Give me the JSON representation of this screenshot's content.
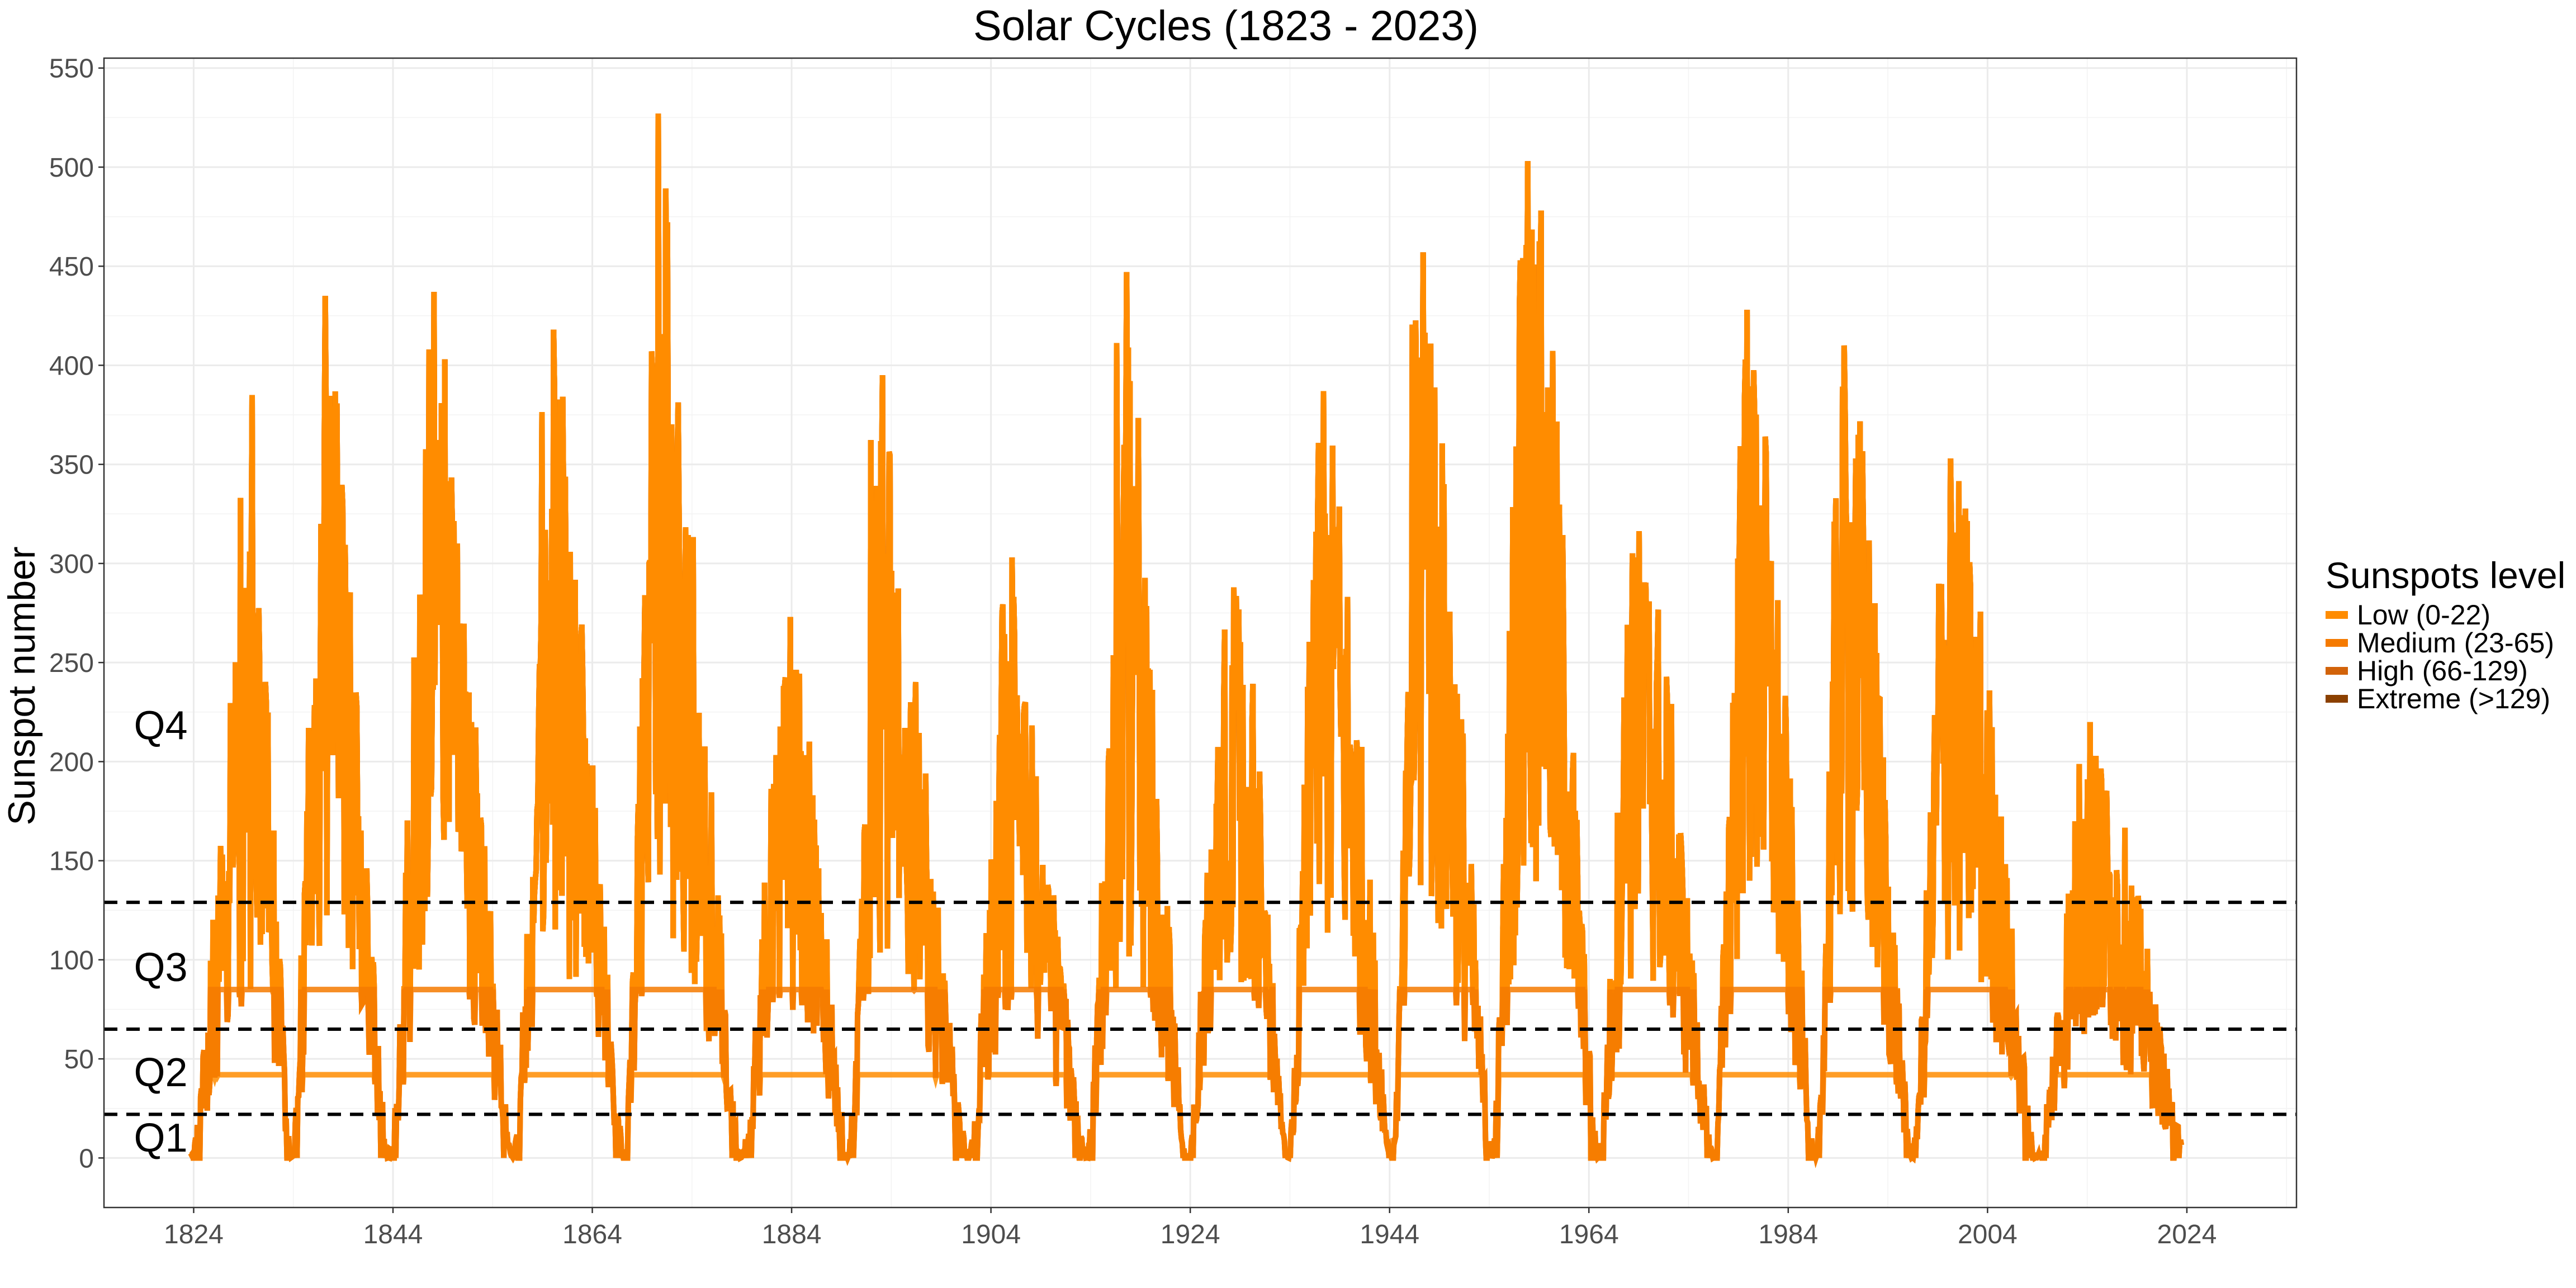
{
  "chart_data": {
    "type": "line",
    "title": "Solar Cycles (1823 - 2023)",
    "xlabel": "",
    "ylabel": "Sunspot number",
    "xlim": [
      1815,
      2035
    ],
    "ylim": [
      -25,
      555
    ],
    "x_ticks": [
      1824,
      1844,
      1864,
      1884,
      1904,
      1924,
      1944,
      1964,
      1984,
      2004,
      2024
    ],
    "y_ticks": [
      0,
      50,
      100,
      150,
      200,
      250,
      300,
      350,
      400,
      450,
      500,
      550
    ],
    "grid": true,
    "legend": {
      "title": "Sunspots level",
      "placement": "right",
      "entries": [
        {
          "label": "Low (0-22)",
          "color": "#FF8C00"
        },
        {
          "label": "Medium (23-65)",
          "color": "#F57A00"
        },
        {
          "label": "High (66-129)",
          "color": "#D2630A"
        },
        {
          "label": "Extreme (>129)",
          "color": "#8B4000"
        }
      ]
    },
    "thresholds": [
      22,
      65,
      129
    ],
    "quartile_labels": [
      {
        "label": "Q1",
        "y": 10
      },
      {
        "label": "Q2",
        "y": 43
      },
      {
        "label": "Q3",
        "y": 96
      },
      {
        "label": "Q4",
        "y": 218
      }
    ],
    "quartile_label_x": 1818,
    "cycle_start_year": 1823.7,
    "cycles": [
      {
        "peak_year": 1829.9,
        "peak_max": 385,
        "envelope": 230,
        "min_year": 1823.5
      },
      {
        "peak_year": 1837.2,
        "peak_max": 435,
        "envelope": 300,
        "min_year": 1833.8
      },
      {
        "peak_year": 1848.1,
        "peak_max": 437,
        "envelope": 290,
        "min_year": 1843.5
      },
      {
        "peak_year": 1860.1,
        "peak_max": 418,
        "envelope": 280,
        "min_year": 1856.0
      },
      {
        "peak_year": 1870.6,
        "peak_max": 527,
        "envelope": 330,
        "min_year": 1867.2
      },
      {
        "peak_year": 1883.9,
        "peak_max": 273,
        "envelope": 200,
        "min_year": 1878.9
      },
      {
        "peak_year": 1893.1,
        "peak_max": 395,
        "envelope": 240,
        "min_year": 1889.6
      },
      {
        "peak_year": 1906.1,
        "peak_max": 303,
        "envelope": 200,
        "min_year": 1901.7
      },
      {
        "peak_year": 1917.6,
        "peak_max": 447,
        "envelope": 270,
        "min_year": 1913.6
      },
      {
        "peak_year": 1928.4,
        "peak_max": 288,
        "envelope": 230,
        "min_year": 1923.6
      },
      {
        "peak_year": 1937.4,
        "peak_max": 387,
        "envelope": 290,
        "min_year": 1933.8
      },
      {
        "peak_year": 1947.4,
        "peak_max": 457,
        "envelope": 320,
        "min_year": 1944.2
      },
      {
        "peak_year": 1957.9,
        "peak_max": 503,
        "envelope": 390,
        "min_year": 1954.3
      },
      {
        "peak_year": 1968.9,
        "peak_max": 303,
        "envelope": 250,
        "min_year": 1964.9
      },
      {
        "peak_year": 1979.9,
        "peak_max": 428,
        "envelope": 320,
        "min_year": 1976.5
      },
      {
        "peak_year": 1989.6,
        "peak_max": 410,
        "envelope": 320,
        "min_year": 1986.8
      },
      {
        "peak_year": 2000.3,
        "peak_max": 353,
        "envelope": 270,
        "min_year": 1996.4
      },
      {
        "peak_year": 2014.3,
        "peak_max": 220,
        "envelope": 160,
        "min_year": 2008.9
      }
    ],
    "end_year": 2023.5
  }
}
